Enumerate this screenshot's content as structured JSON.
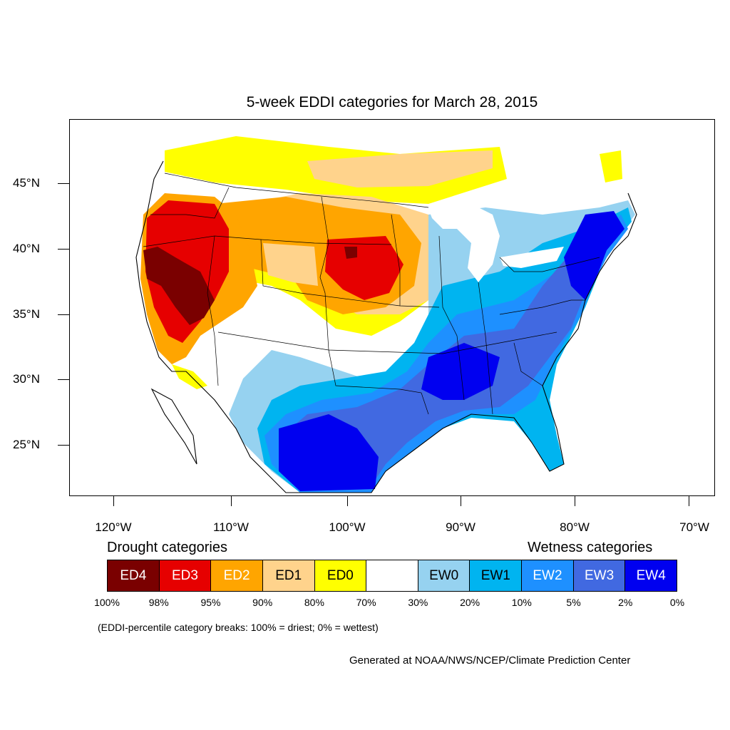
{
  "title": "5-week EDDI categories for March 28, 2015",
  "axes": {
    "lat_labels": [
      "45°N",
      "40°N",
      "35°N",
      "30°N",
      "25°N"
    ],
    "lon_labels": [
      "120°W",
      "110°W",
      "100°W",
      "90°W",
      "80°W",
      "70°W"
    ]
  },
  "legend": {
    "drought_heading": "Drought categories",
    "wetness_heading": "Wetness categories",
    "categories": [
      {
        "label": "ED4",
        "color": "#7a0000",
        "text_color": "#ffffff"
      },
      {
        "label": "ED3",
        "color": "#e60000",
        "text_color": "#ffffff"
      },
      {
        "label": "ED2",
        "color": "#ffa500",
        "text_color": "#ffffff"
      },
      {
        "label": "ED1",
        "color": "#ffd38c",
        "text_color": "#000000"
      },
      {
        "label": "ED0",
        "color": "#ffff00",
        "text_color": "#000000"
      },
      {
        "label": "",
        "color": "#ffffff",
        "text_color": "#000000"
      },
      {
        "label": "EW0",
        "color": "#96d2f0",
        "text_color": "#000000"
      },
      {
        "label": "EW1",
        "color": "#00b4f0",
        "text_color": "#000000"
      },
      {
        "label": "EW2",
        "color": "#1e90ff",
        "text_color": "#ffffff"
      },
      {
        "label": "EW3",
        "color": "#4169e1",
        "text_color": "#ffffff"
      },
      {
        "label": "EW4",
        "color": "#0000f0",
        "text_color": "#ffffff"
      }
    ],
    "breaks": [
      "100%",
      "98%",
      "95%",
      "90%",
      "80%",
      "70%",
      "30%",
      "20%",
      "10%",
      "5%",
      "2%",
      "0%"
    ]
  },
  "note": "(EDDI-percentile category breaks: 100% = driest; 0% = wettest)",
  "credit": "Generated at NOAA/NWS/NCEP/Climate Prediction Center"
}
